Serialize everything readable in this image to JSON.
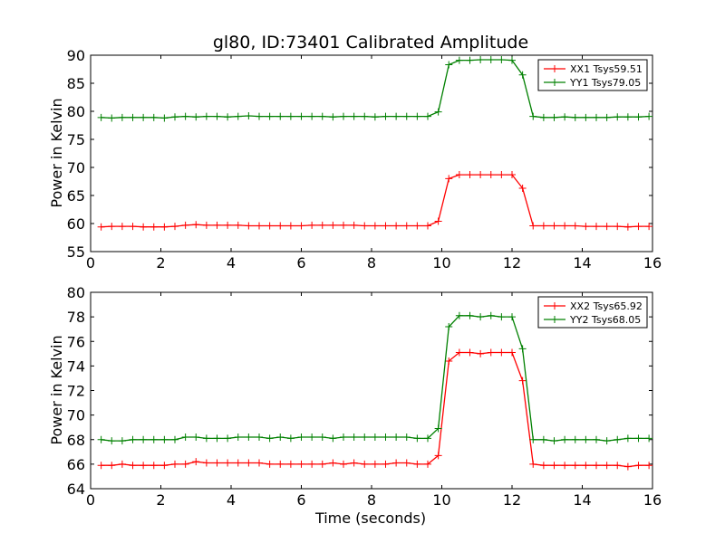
{
  "title": "gl80, ID:73401 Calibrated Amplitude",
  "chart_data": [
    {
      "type": "line",
      "title": "gl80, ID:73401 Calibrated Amplitude",
      "xlabel": "",
      "ylabel": "Power in Kelvin",
      "xlim": [
        0,
        16
      ],
      "ylim": [
        55,
        90
      ],
      "xticks": [
        0,
        2,
        4,
        6,
        8,
        10,
        12,
        14,
        16
      ],
      "yticks": [
        55,
        60,
        65,
        70,
        75,
        80,
        85,
        90
      ],
      "grid": false,
      "legend_position": "top-right",
      "x": [
        0.3,
        0.6,
        0.9,
        1.2,
        1.5,
        1.8,
        2.1,
        2.4,
        2.7,
        3.0,
        3.3,
        3.6,
        3.9,
        4.2,
        4.5,
        4.8,
        5.1,
        5.4,
        5.7,
        6.0,
        6.3,
        6.6,
        6.9,
        7.2,
        7.5,
        7.8,
        8.1,
        8.4,
        8.7,
        9.0,
        9.3,
        9.6,
        9.9,
        10.2,
        10.5,
        10.8,
        11.1,
        11.4,
        11.7,
        12.0,
        12.3,
        12.6,
        12.9,
        13.2,
        13.5,
        13.8,
        14.1,
        14.4,
        14.7,
        15.0,
        15.3,
        15.6,
        15.9
      ],
      "series": [
        {
          "name": "XX1 Tsys59.51",
          "color": "#ff0000",
          "values": [
            59.4,
            59.5,
            59.5,
            59.5,
            59.4,
            59.4,
            59.4,
            59.5,
            59.7,
            59.8,
            59.7,
            59.7,
            59.7,
            59.7,
            59.6,
            59.6,
            59.6,
            59.6,
            59.6,
            59.6,
            59.7,
            59.7,
            59.7,
            59.7,
            59.7,
            59.6,
            59.6,
            59.6,
            59.6,
            59.6,
            59.6,
            59.6,
            60.4,
            68.0,
            68.7,
            68.7,
            68.7,
            68.7,
            68.7,
            68.7,
            66.3,
            59.6,
            59.6,
            59.6,
            59.6,
            59.6,
            59.5,
            59.5,
            59.5,
            59.5,
            59.4,
            59.5,
            59.5
          ]
        },
        {
          "name": "YY1 Tsys79.05",
          "color": "#008000",
          "values": [
            78.9,
            78.8,
            78.9,
            78.9,
            78.9,
            78.9,
            78.8,
            79.0,
            79.1,
            79.0,
            79.1,
            79.1,
            79.0,
            79.1,
            79.2,
            79.1,
            79.1,
            79.1,
            79.1,
            79.1,
            79.1,
            79.1,
            79.0,
            79.1,
            79.1,
            79.1,
            79.0,
            79.1,
            79.1,
            79.1,
            79.1,
            79.1,
            79.9,
            88.3,
            89.1,
            89.1,
            89.2,
            89.2,
            89.2,
            89.1,
            86.5,
            79.1,
            78.9,
            78.9,
            79.0,
            78.9,
            78.9,
            78.9,
            78.9,
            79.0,
            79.0,
            79.0,
            79.1
          ]
        }
      ]
    },
    {
      "type": "line",
      "title": "",
      "xlabel": "Time (seconds)",
      "ylabel": "Power in Kelvin",
      "xlim": [
        0,
        16
      ],
      "ylim": [
        64,
        80
      ],
      "xticks": [
        0,
        2,
        4,
        6,
        8,
        10,
        12,
        14,
        16
      ],
      "yticks": [
        64,
        66,
        68,
        70,
        72,
        74,
        76,
        78,
        80
      ],
      "grid": false,
      "legend_position": "top-right",
      "x": [
        0.3,
        0.6,
        0.9,
        1.2,
        1.5,
        1.8,
        2.1,
        2.4,
        2.7,
        3.0,
        3.3,
        3.6,
        3.9,
        4.2,
        4.5,
        4.8,
        5.1,
        5.4,
        5.7,
        6.0,
        6.3,
        6.6,
        6.9,
        7.2,
        7.5,
        7.8,
        8.1,
        8.4,
        8.7,
        9.0,
        9.3,
        9.6,
        9.9,
        10.2,
        10.5,
        10.8,
        11.1,
        11.4,
        11.7,
        12.0,
        12.3,
        12.6,
        12.9,
        13.2,
        13.5,
        13.8,
        14.1,
        14.4,
        14.7,
        15.0,
        15.3,
        15.6,
        15.9
      ],
      "series": [
        {
          "name": "XX2 Tsys65.92",
          "color": "#ff0000",
          "values": [
            65.9,
            65.9,
            66.0,
            65.9,
            65.9,
            65.9,
            65.9,
            66.0,
            66.0,
            66.2,
            66.1,
            66.1,
            66.1,
            66.1,
            66.1,
            66.1,
            66.0,
            66.0,
            66.0,
            66.0,
            66.0,
            66.0,
            66.1,
            66.0,
            66.1,
            66.0,
            66.0,
            66.0,
            66.1,
            66.1,
            66.0,
            66.0,
            66.7,
            74.4,
            75.1,
            75.1,
            75.0,
            75.1,
            75.1,
            75.1,
            72.8,
            66.0,
            65.9,
            65.9,
            65.9,
            65.9,
            65.9,
            65.9,
            65.9,
            65.9,
            65.8,
            65.9,
            65.9
          ]
        },
        {
          "name": "YY2 Tsys68.05",
          "color": "#008000",
          "values": [
            68.0,
            67.9,
            67.9,
            68.0,
            68.0,
            68.0,
            68.0,
            68.0,
            68.2,
            68.2,
            68.1,
            68.1,
            68.1,
            68.2,
            68.2,
            68.2,
            68.1,
            68.2,
            68.1,
            68.2,
            68.2,
            68.2,
            68.1,
            68.2,
            68.2,
            68.2,
            68.2,
            68.2,
            68.2,
            68.2,
            68.1,
            68.1,
            68.9,
            77.2,
            78.1,
            78.1,
            78.0,
            78.1,
            78.0,
            78.0,
            75.4,
            68.0,
            68.0,
            67.9,
            68.0,
            68.0,
            68.0,
            68.0,
            67.9,
            68.0,
            68.1,
            68.1,
            68.1
          ]
        }
      ]
    }
  ]
}
